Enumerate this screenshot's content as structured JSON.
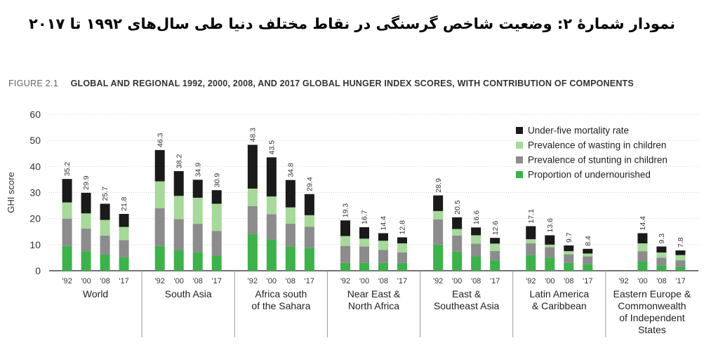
{
  "persian_title": "نمودار شمارهٔ ۲: وضعیت شاخص گرسنگی در نقاط مختلف دنیا طی سال‌های ۱۹۹۲ تا ۲۰۱۷",
  "figure_label": "FIGURE 2.1",
  "chart_data": {
    "type": "bar",
    "stacked": true,
    "title": "GLOBAL AND REGIONAL 1992, 2000, 2008, AND 2017 GLOBAL HUNGER INDEX SCORES, WITH CONTRIBUTION OF COMPONENTS",
    "ylabel": "GHI score",
    "ylim": [
      0,
      60
    ],
    "yticks": [
      0,
      10,
      20,
      30,
      40,
      50,
      60
    ],
    "grid": true,
    "legend_position": "top-right",
    "year_labels": [
      "'92",
      "'00",
      "'08",
      "'17"
    ],
    "series": [
      {
        "name": "Proportion of undernourished",
        "color": "#3db24b"
      },
      {
        "name": "Prevalence of stunting in children",
        "color": "#8c8c8c"
      },
      {
        "name": "Prevalence of wasting in children",
        "color": "#a6d99a"
      },
      {
        "name": "Under-five mortality rate",
        "color": "#1a1a1a"
      }
    ],
    "legend_order": [
      3,
      2,
      1,
      0
    ],
    "groups": [
      {
        "name": [
          "World"
        ],
        "bars": [
          {
            "year": "'92",
            "total": 35.2,
            "label": "35.2",
            "components": [
              9.5,
              10.5,
              6.2,
              9.0
            ]
          },
          {
            "year": "'00",
            "total": 29.9,
            "label": "29.9",
            "components": [
              7.5,
              8.7,
              5.8,
              7.9
            ]
          },
          {
            "year": "'08",
            "total": 25.7,
            "label": "25.7",
            "components": [
              6.2,
              7.3,
              6.0,
              6.2
            ]
          },
          {
            "year": "'17",
            "total": 21.8,
            "label": "21.8",
            "components": [
              5.2,
              6.5,
              5.1,
              5.0
            ]
          }
        ]
      },
      {
        "name": [
          "South Asia"
        ],
        "bars": [
          {
            "year": "'92",
            "total": 46.3,
            "label": "46.3",
            "components": [
              9.5,
              14.5,
              10.3,
              12.0
            ]
          },
          {
            "year": "'00",
            "total": 38.2,
            "label": "38.2",
            "components": [
              7.8,
              12.0,
              8.9,
              9.5
            ]
          },
          {
            "year": "'08",
            "total": 34.9,
            "label": "34.9",
            "components": [
              7.2,
              10.8,
              10.0,
              6.9
            ]
          },
          {
            "year": "'17",
            "total": 30.9,
            "label": "30.9",
            "components": [
              5.8,
              9.4,
              10.5,
              5.2
            ]
          }
        ]
      },
      {
        "name": [
          "Africa south",
          "of the Sahara"
        ],
        "bars": [
          {
            "year": "'92",
            "total": 48.3,
            "label": "48.3",
            "components": [
              14.0,
              10.8,
              6.7,
              16.8
            ]
          },
          {
            "year": "'00",
            "total": 43.5,
            "label": "43.5",
            "components": [
              12.0,
              9.7,
              6.8,
              15.0
            ]
          },
          {
            "year": "'08",
            "total": 34.8,
            "label": "34.8",
            "components": [
              9.3,
              8.8,
              6.2,
              10.5
            ]
          },
          {
            "year": "'17",
            "total": 29.4,
            "label": "29.4",
            "components": [
              8.7,
              8.2,
              4.4,
              8.1
            ]
          }
        ]
      },
      {
        "name": [
          "Near East &",
          "North Africa"
        ],
        "bars": [
          {
            "year": "'92",
            "total": 19.3,
            "label": "19.3",
            "components": [
              3.0,
              6.5,
              3.8,
              6.0
            ]
          },
          {
            "year": "'00",
            "total": 16.7,
            "label": "16.7",
            "components": [
              3.0,
              6.3,
              3.0,
              4.4
            ]
          },
          {
            "year": "'08",
            "total": 14.4,
            "label": "14.4",
            "components": [
              3.0,
              5.0,
              3.5,
              2.9
            ]
          },
          {
            "year": "'17",
            "total": 12.8,
            "label": "12.8",
            "components": [
              3.0,
              4.0,
              3.5,
              2.3
            ]
          }
        ]
      },
      {
        "name": [
          "East &",
          "Southeast Asia"
        ],
        "bars": [
          {
            "year": "'92",
            "total": 28.9,
            "label": "28.9",
            "components": [
              10.0,
              9.7,
              3.2,
              6.0
            ]
          },
          {
            "year": "'00",
            "total": 20.5,
            "label": "20.5",
            "components": [
              7.3,
              6.2,
              2.5,
              4.5
            ]
          },
          {
            "year": "'08",
            "total": 16.6,
            "label": "16.6",
            "components": [
              5.5,
              4.9,
              3.2,
              3.0
            ]
          },
          {
            "year": "'17",
            "total": 12.6,
            "label": "12.6",
            "components": [
              4.0,
              3.6,
              2.8,
              2.2
            ]
          }
        ]
      },
      {
        "name": [
          "Latin America",
          "& Caribbean"
        ],
        "bars": [
          {
            "year": "'92",
            "total": 17.1,
            "label": "17.1",
            "components": [
              6.0,
              4.5,
              1.6,
              5.0
            ]
          },
          {
            "year": "'00",
            "total": 13.6,
            "label": "13.6",
            "components": [
              5.0,
              4.0,
              1.0,
              3.6
            ]
          },
          {
            "year": "'08",
            "total": 9.7,
            "label": "9.7",
            "components": [
              3.0,
              3.3,
              1.2,
              2.2
            ]
          },
          {
            "year": "'17",
            "total": 8.4,
            "label": "8.4",
            "components": [
              2.5,
              3.0,
              1.1,
              1.8
            ]
          }
        ]
      },
      {
        "name": [
          "Eastern Europe &",
          "Commonwealth",
          "of Independent",
          "States"
        ],
        "bars": [
          {
            "year": "'92",
            "total": null,
            "label": "",
            "components": []
          },
          {
            "year": "'00",
            "total": 14.4,
            "label": "14.4",
            "components": [
              3.5,
              4.0,
              3.0,
              3.9
            ]
          },
          {
            "year": "'08",
            "total": 9.3,
            "label": "9.3",
            "components": [
              2.0,
              3.0,
              2.0,
              2.3
            ]
          },
          {
            "year": "'17",
            "total": 7.8,
            "label": "7.8",
            "components": [
              1.5,
              2.5,
              2.0,
              1.8
            ]
          }
        ]
      }
    ]
  }
}
